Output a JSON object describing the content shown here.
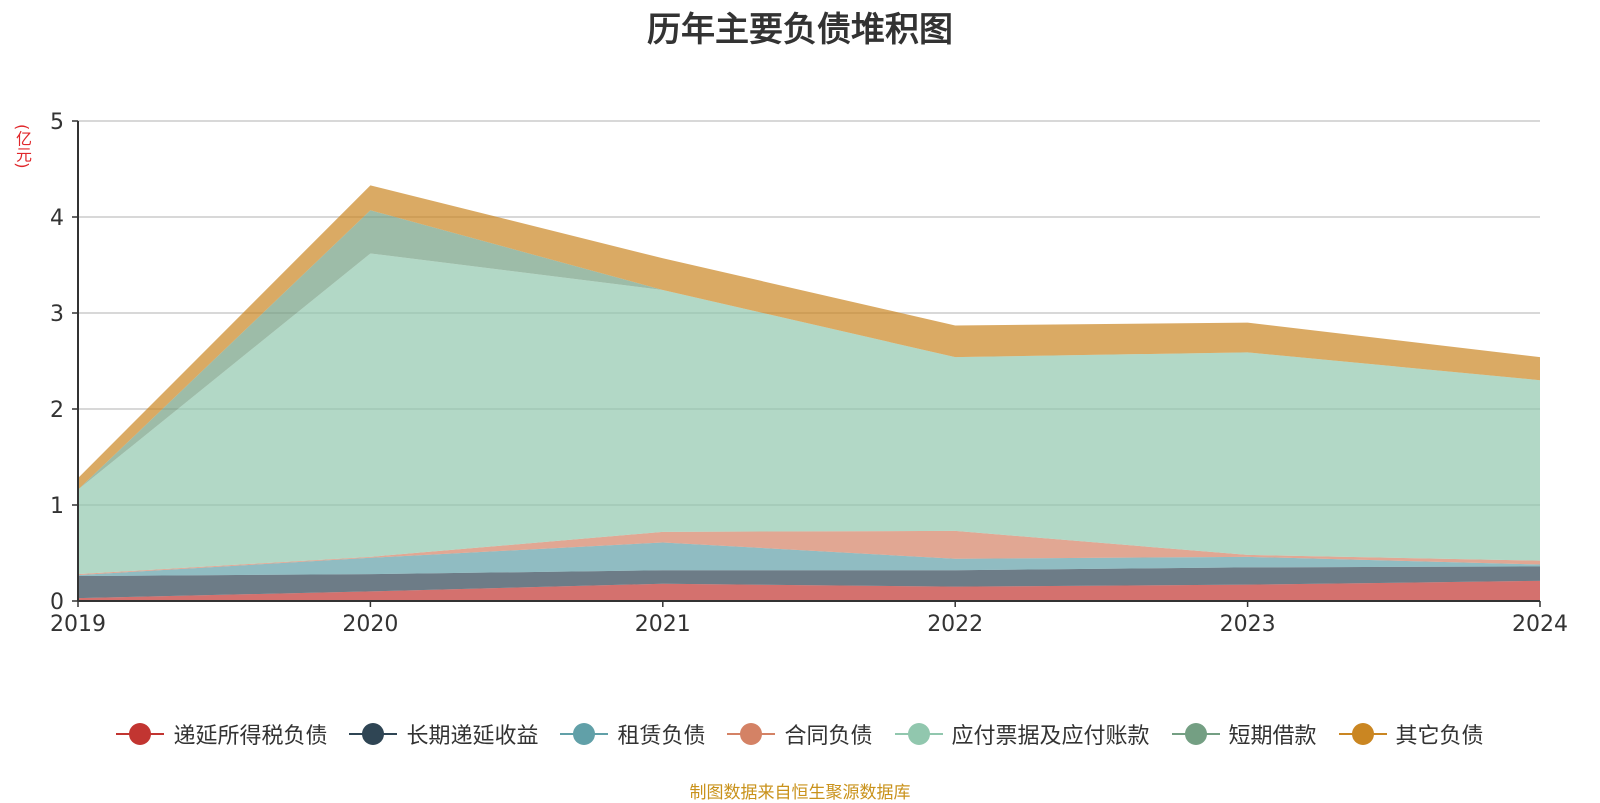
{
  "chart_data": {
    "type": "area",
    "stacked": true,
    "title": "历年主要负债堆积图",
    "unit_label": "(亿元)",
    "xlabel": "",
    "ylabel": "",
    "categories": [
      "2019",
      "2020",
      "2021",
      "2022",
      "2023",
      "2024"
    ],
    "ylim": [
      0,
      5
    ],
    "yticks": [
      0,
      1,
      2,
      3,
      4,
      5
    ],
    "grid": true,
    "legend_position": "bottom",
    "series": [
      {
        "name": "递延所得税负债",
        "color": "#c23531",
        "values": [
          0.03,
          0.1,
          0.18,
          0.15,
          0.17,
          0.21
        ]
      },
      {
        "name": "长期递延收益",
        "color": "#2f4554",
        "values": [
          0.23,
          0.18,
          0.14,
          0.17,
          0.18,
          0.15
        ]
      },
      {
        "name": "租赁负债",
        "color": "#61a0a8",
        "values": [
          0.01,
          0.17,
          0.29,
          0.12,
          0.11,
          0.02
        ]
      },
      {
        "name": "合同负债",
        "color": "#d48265",
        "values": [
          0.01,
          0.01,
          0.11,
          0.29,
          0.02,
          0.04
        ]
      },
      {
        "name": "应付票据及应付账款",
        "color": "#91c7ae",
        "values": [
          0.88,
          3.16,
          2.52,
          1.81,
          2.11,
          1.88
        ]
      },
      {
        "name": "短期借款",
        "color": "#749f83",
        "values": [
          0.0,
          0.45,
          0.0,
          0.0,
          0.0,
          0.0
        ]
      },
      {
        "name": "其它负债",
        "color": "#ca8622",
        "values": [
          0.12,
          0.26,
          0.33,
          0.33,
          0.31,
          0.24
        ]
      }
    ],
    "source_note": "制图数据来自恒生聚源数据库"
  }
}
